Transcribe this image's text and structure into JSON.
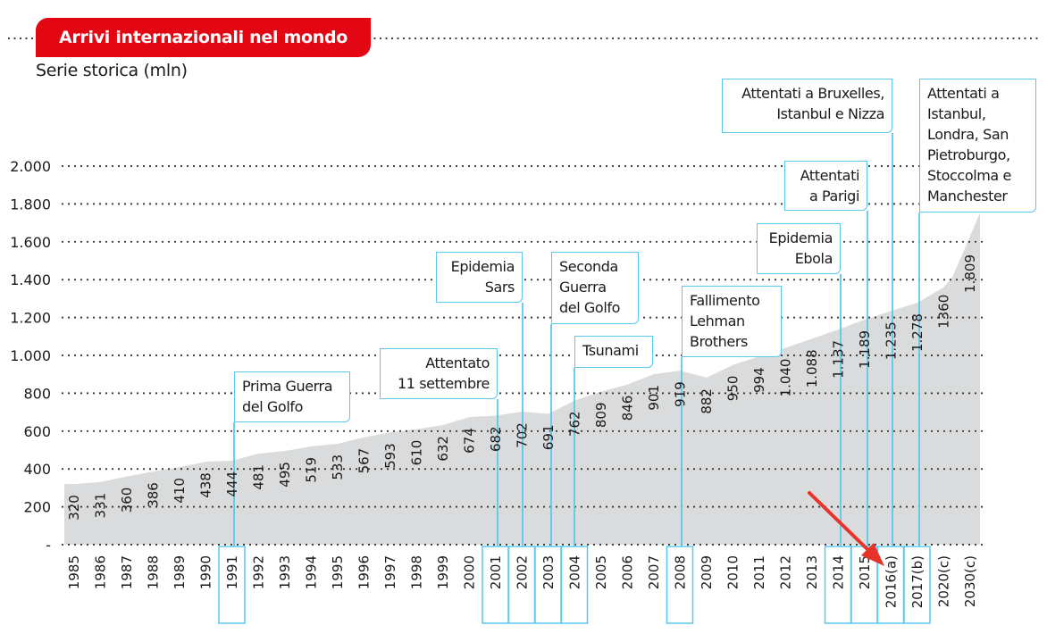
{
  "header": {
    "title": "Arrivi internazionali nel mondo",
    "subtitle": "Serie storica (mln)"
  },
  "colors": {
    "title_bg": "#e30613",
    "area": "#d9dbdc",
    "event_line": "#5bc8ec",
    "arrow": "#e8332a"
  },
  "chart_data": {
    "type": "area",
    "title": "Arrivi internazionali nel mondo",
    "subtitle": "Serie storica (mln)",
    "ylim": [
      0,
      2000
    ],
    "y_ticks": [
      0,
      200,
      400,
      600,
      800,
      1000,
      1200,
      1400,
      1600,
      1800,
      2000
    ],
    "y_tick_labels": [
      "-",
      "200",
      "400",
      "600",
      "800",
      "1.000",
      "1.200",
      "1.400",
      "1.600",
      "1.800",
      "2.000"
    ],
    "grid": true,
    "categories": [
      "1985",
      "1986",
      "1987",
      "1988",
      "1989",
      "1990",
      "1991",
      "1992",
      "1993",
      "1994",
      "1995",
      "1996",
      "1997",
      "1998",
      "1999",
      "2000",
      "2001",
      "2002",
      "2003",
      "2004",
      "2005",
      "2006",
      "2007",
      "2008",
      "2009",
      "2010",
      "2011",
      "2012",
      "2013",
      "2014",
      "2015",
      "2016(a)",
      "2017(b)",
      "2020(c)",
      "2030(c)"
    ],
    "values": [
      320,
      331,
      360,
      386,
      410,
      438,
      444,
      481,
      495,
      519,
      533,
      567,
      593,
      610,
      632,
      674,
      682,
      702,
      691,
      762,
      809,
      846,
      901,
      919,
      882,
      950,
      994,
      1040,
      1088,
      1137,
      1189,
      1235,
      1278,
      1360,
      1809
    ],
    "value_labels": [
      "320",
      "331",
      "360",
      "386",
      "410",
      "438",
      "444",
      "481",
      "495",
      "519",
      "533",
      "567",
      "593",
      "610",
      "632",
      "674",
      "682",
      "702",
      "691",
      "762",
      "809",
      "846",
      "901",
      "919",
      "882",
      "950",
      "994",
      "1.040",
      "1.088",
      "1.137",
      "1.189",
      "1.235",
      "1.278",
      "1360",
      "1.809"
    ],
    "annotations": [
      {
        "category": "1991",
        "lines": [
          "Prima Guerra",
          "del Golfo"
        ]
      },
      {
        "category": "2001",
        "lines": [
          "Attentato",
          "11 settembre"
        ]
      },
      {
        "category": "2002",
        "lines": [
          "Epidemia",
          "Sars"
        ]
      },
      {
        "category": "2003",
        "lines": [
          "Seconda",
          "Guerra",
          "del Golfo"
        ]
      },
      {
        "category": "2004",
        "lines": [
          "Tsunami"
        ]
      },
      {
        "category": "2008",
        "lines": [
          "Fallimento",
          "Lehman",
          "Brothers"
        ]
      },
      {
        "category": "2014",
        "lines": [
          "Epidemia",
          "Ebola"
        ]
      },
      {
        "category": "2015",
        "lines": [
          "Attentati",
          "a Parigi"
        ]
      },
      {
        "category": "2016(a)",
        "lines": [
          "Attentati a Bruxelles,",
          "Istanbul e Nizza"
        ]
      },
      {
        "category": "2017(b)",
        "lines": [
          "Attentati a",
          "Istanbul,",
          "Londra, San",
          "Pietroburgo,",
          "Stoccolma e",
          "Manchester"
        ]
      }
    ],
    "highlight_arrow_target": "2016(a)"
  }
}
